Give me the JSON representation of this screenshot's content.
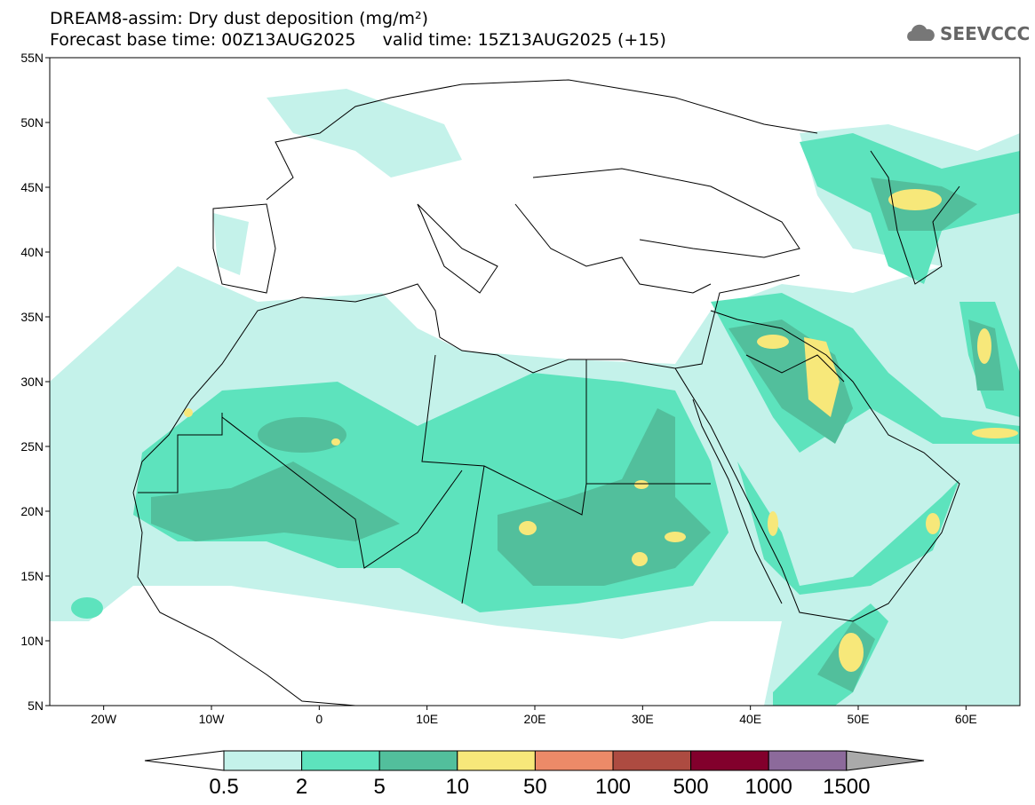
{
  "header": {
    "title": "DREAM8-assim: Dry dust deposition (mg/m²)",
    "subtitle": "Forecast base time: 00Z13AUG2025     valid time: 15Z13AUG2025 (+15)",
    "logo": "SEEVCCC"
  },
  "map": {
    "lat_range": [
      5,
      55
    ],
    "lon_range": [
      -25,
      65
    ],
    "lat_ticks": [
      {
        "value": 55,
        "label": "55N"
      },
      {
        "value": 50,
        "label": "50N"
      },
      {
        "value": 45,
        "label": "45N"
      },
      {
        "value": 40,
        "label": "40N"
      },
      {
        "value": 35,
        "label": "35N"
      },
      {
        "value": 30,
        "label": "30N"
      },
      {
        "value": 25,
        "label": "25N"
      },
      {
        "value": 20,
        "label": "20N"
      },
      {
        "value": 15,
        "label": "15N"
      },
      {
        "value": 10,
        "label": "10N"
      },
      {
        "value": 5,
        "label": "5N"
      }
    ],
    "lon_ticks": [
      {
        "value": -20,
        "label": "20W"
      },
      {
        "value": -10,
        "label": "10W"
      },
      {
        "value": 0,
        "label": "0"
      },
      {
        "value": 10,
        "label": "10E"
      },
      {
        "value": 20,
        "label": "20E"
      },
      {
        "value": 30,
        "label": "30E"
      },
      {
        "value": 40,
        "label": "40E"
      },
      {
        "value": 50,
        "label": "50E"
      },
      {
        "value": 60,
        "label": "60E"
      }
    ]
  },
  "legend": {
    "colors": [
      "#c4f2ea",
      "#5de3bd",
      "#52bf9c",
      "#f7e87a",
      "#ec8a68",
      "#ad4b41",
      "#82002c",
      "#8c6a9b"
    ],
    "under_color": "#ffffff",
    "over_color": "#aaaaaa",
    "labels": [
      "0.5",
      "2",
      "5",
      "10",
      "50",
      "100",
      "500",
      "1000",
      "1500"
    ]
  }
}
